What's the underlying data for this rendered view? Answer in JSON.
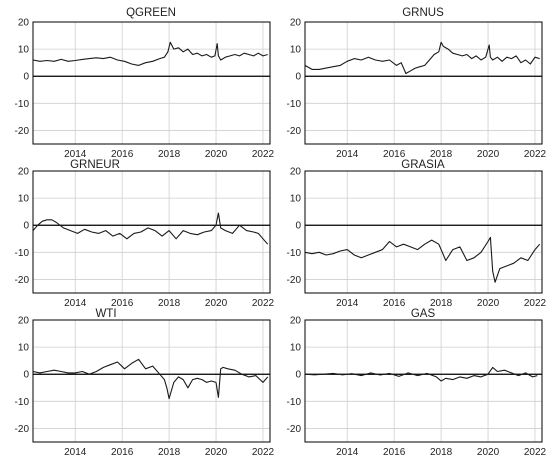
{
  "figure": {
    "line_color": "#1a1a1a",
    "axis_color": "#000000",
    "grid_color": "#cfcfcf"
  },
  "chart_data": [
    {
      "type": "line",
      "title": "QGREEN",
      "ylim": [
        -25,
        20
      ],
      "yticks": [
        20,
        10,
        0,
        -10,
        -20
      ],
      "xlim": [
        2012.2,
        2022.3
      ],
      "xticks": [
        "2014",
        "2016",
        "2018",
        "2020",
        "2022"
      ],
      "grid": true,
      "zero_line": true,
      "series": [
        {
          "x": [
            2012.2,
            2012.5,
            2012.8,
            2013.1,
            2013.4,
            2013.7,
            2014.0,
            2014.3,
            2014.6,
            2014.9,
            2015.2,
            2015.5,
            2015.8,
            2016.1,
            2016.4,
            2016.7,
            2017.0,
            2017.3,
            2017.6,
            2017.8,
            2017.95,
            2018.05,
            2018.2,
            2018.4,
            2018.6,
            2018.8,
            2019.0,
            2019.2,
            2019.4,
            2019.6,
            2019.8,
            2019.95,
            2020.05,
            2020.1,
            2020.2,
            2020.3,
            2020.4,
            2020.6,
            2020.8,
            2021.0,
            2021.2,
            2021.4,
            2021.6,
            2021.8,
            2022.0,
            2022.2
          ],
          "values": [
            6,
            5.5,
            5.8,
            5.5,
            6.2,
            5.5,
            5.8,
            6.2,
            6.5,
            6.8,
            6.5,
            7,
            6,
            5.5,
            4.5,
            4,
            5,
            5.5,
            6.5,
            7,
            9,
            12.5,
            10,
            10.5,
            9,
            10,
            8,
            8.5,
            7.5,
            8,
            7,
            7.5,
            12,
            7.5,
            6,
            6.5,
            7,
            7.5,
            8,
            7.5,
            8.5,
            8,
            7.5,
            8.5,
            7.5,
            8
          ]
        }
      ]
    },
    {
      "type": "line",
      "title": "GRNUS",
      "ylim": [
        -25,
        20
      ],
      "yticks": [
        20,
        10,
        0,
        -10,
        -20
      ],
      "xlim": [
        2012.2,
        2022.3
      ],
      "xticks": [
        "2014",
        "2016",
        "2018",
        "2020",
        "2022"
      ],
      "grid": true,
      "zero_line": true,
      "series": [
        {
          "x": [
            2012.2,
            2012.5,
            2012.8,
            2013.1,
            2013.4,
            2013.7,
            2014.0,
            2014.3,
            2014.6,
            2014.9,
            2015.2,
            2015.5,
            2015.8,
            2016.1,
            2016.3,
            2016.5,
            2016.7,
            2016.9,
            2017.1,
            2017.3,
            2017.5,
            2017.7,
            2017.9,
            2018.0,
            2018.1,
            2018.3,
            2018.5,
            2018.7,
            2018.9,
            2019.1,
            2019.3,
            2019.5,
            2019.7,
            2019.9,
            2020.05,
            2020.1,
            2020.2,
            2020.4,
            2020.6,
            2020.8,
            2021.0,
            2021.2,
            2021.4,
            2021.6,
            2021.8,
            2022.0,
            2022.2
          ],
          "values": [
            4,
            2.5,
            2.5,
            3,
            3.5,
            4,
            5.5,
            6.5,
            6,
            7,
            6,
            5.5,
            6,
            4,
            5,
            1,
            2,
            3,
            3.5,
            4,
            6,
            8,
            9,
            12.5,
            11,
            10,
            8.5,
            8,
            7.5,
            8,
            6.5,
            7.5,
            6,
            7,
            11.5,
            7,
            6,
            7,
            5.5,
            7,
            6.5,
            7.5,
            5,
            6,
            4.5,
            7,
            6.5
          ]
        }
      ]
    },
    {
      "type": "line",
      "title": "GRNEUR",
      "ylim": [
        -25,
        20
      ],
      "yticks": [
        20,
        10,
        0,
        -10,
        -20
      ],
      "xlim": [
        2012.2,
        2022.3
      ],
      "xticks": [
        "2014",
        "2016",
        "2018",
        "2020",
        "2022"
      ],
      "grid": true,
      "zero_line": true,
      "series": [
        {
          "x": [
            2012.2,
            2012.4,
            2012.6,
            2012.8,
            2013.0,
            2013.2,
            2013.5,
            2013.8,
            2014.1,
            2014.4,
            2014.7,
            2015.0,
            2015.3,
            2015.6,
            2015.9,
            2016.2,
            2016.5,
            2016.8,
            2017.1,
            2017.4,
            2017.7,
            2018.0,
            2018.3,
            2018.6,
            2018.9,
            2019.2,
            2019.5,
            2019.8,
            2020.0,
            2020.1,
            2020.2,
            2020.4,
            2020.7,
            2021.0,
            2021.3,
            2021.6,
            2021.8,
            2022.0,
            2022.2
          ],
          "values": [
            -2,
            0,
            1.5,
            2,
            2,
            1,
            -1,
            -2,
            -3,
            -1.5,
            -2.5,
            -3,
            -2,
            -4,
            -3,
            -5,
            -3,
            -2.5,
            -1,
            -2,
            -4,
            -2,
            -5,
            -2,
            -3,
            -3.5,
            -2.5,
            -2,
            0,
            4.5,
            -1,
            -2,
            -3,
            0,
            -2,
            -2.5,
            -3,
            -5,
            -7
          ]
        }
      ]
    },
    {
      "type": "line",
      "title": "GRASIA",
      "ylim": [
        -25,
        20
      ],
      "yticks": [
        20,
        10,
        0,
        -10,
        -20
      ],
      "xlim": [
        2012.2,
        2022.3
      ],
      "xticks": [
        "2014",
        "2016",
        "2018",
        "2020",
        "2022"
      ],
      "grid": true,
      "zero_line": true,
      "series": [
        {
          "x": [
            2012.2,
            2012.5,
            2012.8,
            2013.1,
            2013.4,
            2013.7,
            2014.0,
            2014.3,
            2014.6,
            2014.9,
            2015.2,
            2015.5,
            2015.8,
            2016.1,
            2016.4,
            2016.7,
            2017.0,
            2017.3,
            2017.6,
            2017.9,
            2018.2,
            2018.5,
            2018.8,
            2019.1,
            2019.4,
            2019.7,
            2020.0,
            2020.1,
            2020.2,
            2020.3,
            2020.5,
            2020.8,
            2021.1,
            2021.4,
            2021.7,
            2022.0,
            2022.2
          ],
          "values": [
            -10,
            -10.5,
            -10,
            -11,
            -10.5,
            -9.5,
            -9,
            -11,
            -12,
            -11,
            -10,
            -9,
            -6,
            -8,
            -7,
            -8,
            -9,
            -7,
            -5.5,
            -7,
            -13,
            -9,
            -8,
            -13,
            -12,
            -10,
            -6,
            -4.5,
            -17,
            -21,
            -16,
            -15,
            -14,
            -12,
            -13,
            -9,
            -7
          ]
        }
      ]
    },
    {
      "type": "line",
      "title": "WTI",
      "ylim": [
        -25,
        20
      ],
      "yticks": [
        20,
        10,
        0,
        -10,
        -20
      ],
      "xlim": [
        2012.2,
        2022.3
      ],
      "xticks": [
        "2014",
        "2016",
        "2018",
        "2020",
        "2022"
      ],
      "grid": true,
      "zero_line": true,
      "series": [
        {
          "x": [
            2012.2,
            2012.5,
            2012.8,
            2013.1,
            2013.4,
            2013.7,
            2014.0,
            2014.3,
            2014.6,
            2014.9,
            2015.2,
            2015.5,
            2015.8,
            2016.1,
            2016.4,
            2016.7,
            2017.0,
            2017.3,
            2017.6,
            2017.8,
            2017.9,
            2018.0,
            2018.2,
            2018.4,
            2018.6,
            2018.8,
            2019.0,
            2019.2,
            2019.4,
            2019.6,
            2019.8,
            2020.0,
            2020.1,
            2020.2,
            2020.3,
            2020.5,
            2020.8,
            2021.1,
            2021.4,
            2021.7,
            2022.0,
            2022.2
          ],
          "values": [
            1,
            0.5,
            1,
            1.5,
            1,
            0.5,
            0.5,
            1,
            0,
            1,
            2.5,
            3.5,
            4.5,
            2,
            4,
            5.5,
            2,
            3,
            0,
            -2,
            -5,
            -9,
            -3,
            -1,
            -2,
            -5,
            -2,
            -1.5,
            -2,
            -3,
            -2.5,
            -3,
            -8.5,
            2,
            2.5,
            2,
            1.5,
            0,
            -1,
            -0.5,
            -3,
            -1
          ]
        }
      ]
    },
    {
      "type": "line",
      "title": "GAS",
      "ylim": [
        -25,
        20
      ],
      "yticks": [
        20,
        10,
        0,
        -10,
        -20
      ],
      "xlim": [
        2012.2,
        2022.3
      ],
      "xticks": [
        "2014",
        "2016",
        "2018",
        "2020",
        "2022"
      ],
      "grid": true,
      "zero_line": true,
      "series": [
        {
          "x": [
            2012.2,
            2012.6,
            2013.0,
            2013.4,
            2013.8,
            2014.2,
            2014.6,
            2015.0,
            2015.4,
            2015.8,
            2016.2,
            2016.6,
            2017.0,
            2017.4,
            2017.8,
            2018.0,
            2018.2,
            2018.5,
            2018.8,
            2019.1,
            2019.4,
            2019.7,
            2020.0,
            2020.2,
            2020.4,
            2020.7,
            2021.0,
            2021.3,
            2021.6,
            2021.9,
            2022.1
          ],
          "values": [
            0,
            -0.2,
            0,
            0.3,
            -0.2,
            0.2,
            -0.5,
            0.5,
            -0.3,
            0.3,
            -0.8,
            0.5,
            -0.5,
            0.3,
            -1,
            -2.5,
            -1.5,
            -2,
            -1,
            -1.5,
            -0.5,
            -1,
            0,
            2.5,
            1,
            1.5,
            0.5,
            -0.5,
            0.5,
            -1,
            -0.5
          ]
        }
      ]
    }
  ]
}
